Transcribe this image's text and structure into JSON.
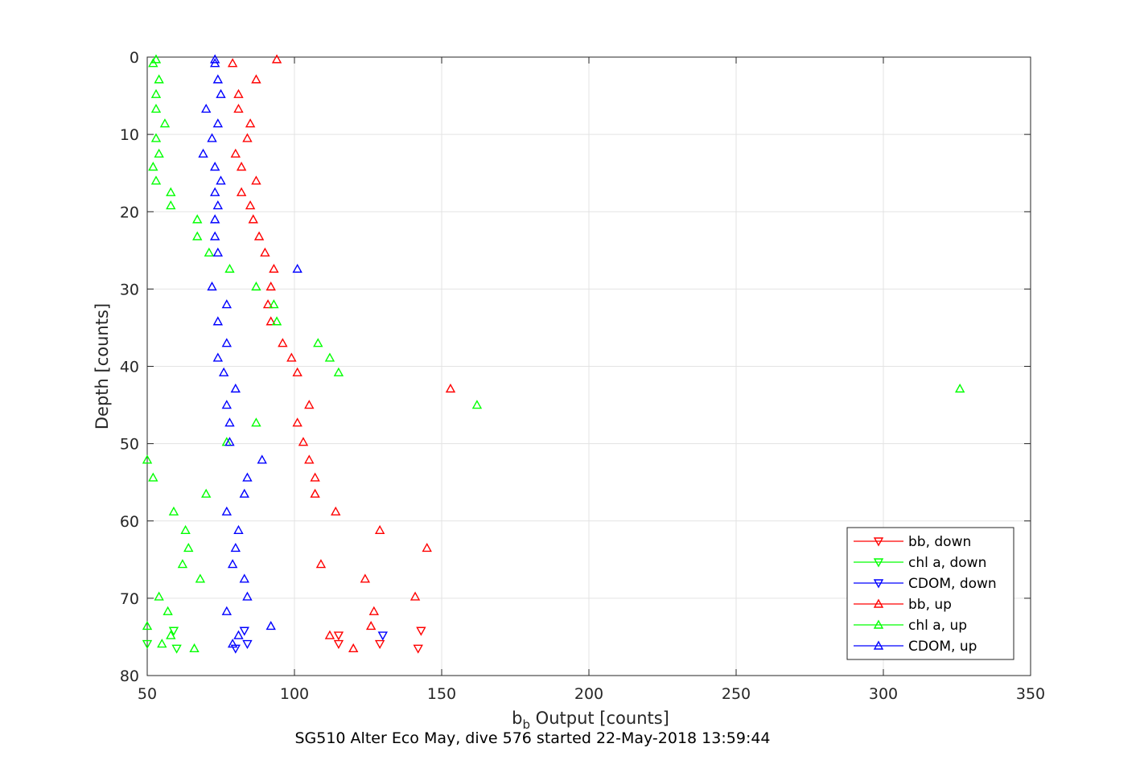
{
  "chart_data": {
    "type": "scatter",
    "xlabel_base": "b",
    "xlabel_sub": "b",
    "xlabel_rest": " Output [counts]",
    "ylabel": "Depth [counts]",
    "caption": "SG510 Alter Eco May, dive 576 started 22-May-2018 13:59:44",
    "xlim": [
      50,
      350
    ],
    "ylim": [
      0,
      80
    ],
    "y_reversed": true,
    "grid": true,
    "legend_position": "bottom-right",
    "x_ticks": [
      "50",
      "100",
      "150",
      "200",
      "250",
      "300",
      "350"
    ],
    "y_ticks": [
      "0",
      "10",
      "20",
      "30",
      "40",
      "50",
      "60",
      "70",
      "80"
    ],
    "colors": {
      "red": "#ff0000",
      "green": "#00ff00",
      "blue": "#0000ff",
      "axis": "#262626",
      "grid": "#e3e3e3"
    },
    "series": [
      {
        "name": "bb, down",
        "color": "#ff0000",
        "marker": "triangle-down",
        "x": [
          115,
          115,
          129,
          143,
          142
        ],
        "y": [
          74.8,
          75.9,
          75.9,
          74.2,
          76.5
        ]
      },
      {
        "name": "chl a, down",
        "color": "#00ff00",
        "marker": "triangle-down",
        "x": [
          50,
          59,
          60
        ],
        "y": [
          75.9,
          74.2,
          76.5
        ]
      },
      {
        "name": "CDOM, down",
        "color": "#0000ff",
        "marker": "triangle-down",
        "x": [
          130,
          84,
          83,
          80
        ],
        "y": [
          74.8,
          75.9,
          74.2,
          76.5
        ]
      },
      {
        "name": "bb, up",
        "color": "#ff0000",
        "marker": "triangle-up",
        "x": [
          94,
          79,
          87,
          81,
          81,
          85,
          84,
          80,
          82,
          87,
          82,
          85,
          86,
          88,
          90,
          93,
          92,
          91,
          92,
          96,
          99,
          101,
          153,
          105,
          101,
          103,
          105,
          107,
          107,
          114,
          129,
          145,
          109,
          124,
          141,
          127,
          126,
          112,
          120
        ],
        "y": [
          0.3,
          0.8,
          2.9,
          4.8,
          6.7,
          8.6,
          10.5,
          12.5,
          14.2,
          16.0,
          17.5,
          19.2,
          21.0,
          23.2,
          25.3,
          27.4,
          29.7,
          32.0,
          34.2,
          37.0,
          38.9,
          40.8,
          42.9,
          45.0,
          47.3,
          49.8,
          52.1,
          54.4,
          56.5,
          58.8,
          61.2,
          63.5,
          65.6,
          67.5,
          69.8,
          71.7,
          73.6,
          74.8,
          76.5
        ]
      },
      {
        "name": "chl a, up",
        "color": "#00ff00",
        "marker": "triangle-up",
        "x": [
          53,
          52,
          54,
          53,
          53,
          56,
          53,
          54,
          52,
          53,
          58,
          58,
          67,
          67,
          71,
          78,
          87,
          93,
          94,
          108,
          112,
          115,
          326,
          162,
          87,
          77,
          50,
          52,
          70,
          59,
          63,
          64,
          62,
          68,
          54,
          57,
          50,
          58,
          55,
          66
        ],
        "y": [
          0.3,
          0.8,
          2.9,
          4.8,
          6.7,
          8.6,
          10.5,
          12.5,
          14.2,
          16.0,
          17.5,
          19.2,
          21.0,
          23.2,
          25.3,
          27.4,
          29.7,
          32.0,
          34.2,
          37.0,
          38.9,
          40.8,
          42.9,
          45.0,
          47.3,
          49.8,
          52.1,
          54.4,
          56.5,
          58.8,
          61.2,
          63.5,
          65.6,
          67.5,
          69.8,
          71.7,
          73.6,
          74.8,
          75.9,
          76.5
        ]
      },
      {
        "name": "CDOM, up",
        "color": "#0000ff",
        "marker": "triangle-up",
        "x": [
          73,
          73,
          74,
          75,
          70,
          74,
          72,
          69,
          73,
          75,
          73,
          74,
          73,
          73,
          74,
          101,
          72,
          77,
          74,
          77,
          74,
          76,
          80,
          77,
          78,
          78,
          89,
          84,
          83,
          77,
          81,
          80,
          79,
          83,
          84,
          77,
          92,
          81,
          79
        ],
        "y": [
          0.3,
          0.8,
          2.9,
          4.8,
          6.7,
          8.6,
          10.5,
          12.5,
          14.2,
          16.0,
          17.5,
          19.2,
          21.0,
          23.2,
          25.3,
          27.4,
          29.7,
          32.0,
          34.2,
          37.0,
          38.9,
          40.8,
          42.9,
          45.0,
          47.3,
          49.8,
          52.1,
          54.4,
          56.5,
          58.8,
          61.2,
          63.5,
          65.6,
          67.5,
          69.8,
          71.7,
          73.6,
          74.8,
          75.9
        ]
      }
    ]
  }
}
